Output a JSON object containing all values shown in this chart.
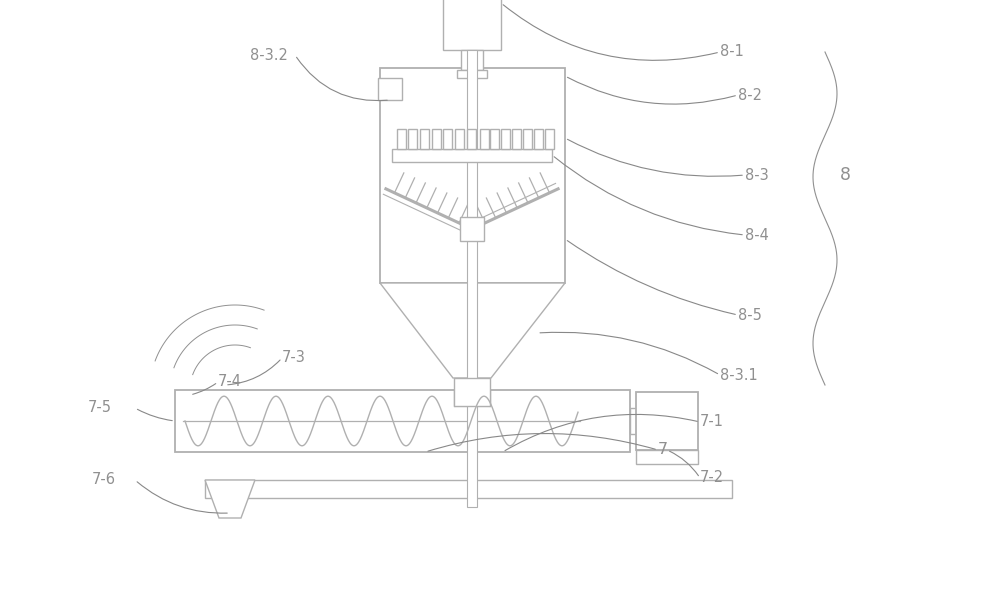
{
  "bg_color": "#ffffff",
  "line_color": "#b0b0b0",
  "text_color": "#888888",
  "fig_width": 10.0,
  "fig_height": 5.97
}
